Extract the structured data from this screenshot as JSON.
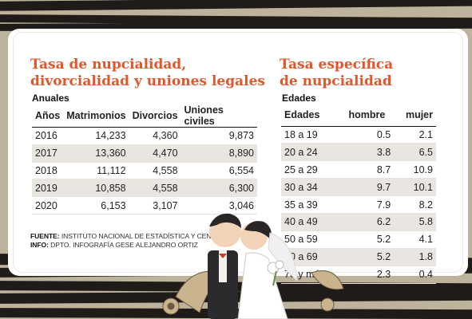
{
  "left_section": {
    "title_line1": "Tasa de nupcialidad,",
    "title_line2": "divorcialidad y  uniones legales",
    "subtitle": "Anuales",
    "columns": [
      "Años",
      "Matrimonios",
      "Divorcios",
      "Uniones civiles"
    ],
    "rows": [
      [
        "2016",
        "14,233",
        "4,360",
        "9,873"
      ],
      [
        "2017",
        "13,360",
        "4,470",
        "8,890"
      ],
      [
        "2018",
        "11,112",
        "4,558",
        "6,554"
      ],
      [
        "2019",
        "10,858",
        "4,558",
        "6,300"
      ],
      [
        "2020",
        "6,153",
        "3,107",
        "3,046"
      ]
    ]
  },
  "right_section": {
    "title_line1": "Tasa específica",
    "title_line2": "de nupcialidad",
    "subtitle": "Edades",
    "columns": [
      "Edades",
      "hombre",
      "mujer"
    ],
    "rows": [
      [
        "18 a 19",
        "0.5",
        "2.1"
      ],
      [
        "20 a 24",
        "3.8",
        "6.5"
      ],
      [
        "25 a 29",
        "8.7",
        "10.9"
      ],
      [
        "30 a 34",
        "9.7",
        "10.1"
      ],
      [
        "35 a 39",
        "7.9",
        "8.2"
      ],
      [
        "40 a 49",
        "6.2",
        "5.8"
      ],
      [
        "50 a 59",
        "5.2",
        "4.1"
      ],
      [
        "60 a 69",
        "5.2",
        "1.8"
      ],
      [
        "70 y más",
        "2.3",
        "0.4"
      ]
    ]
  },
  "source": {
    "fuente_label": "FUENTE:",
    "fuente_value": " INSTITUTO NACIONAL DE ESTADÍSTICA Y CENSO",
    "info_label": "INFO:",
    "info_value": " DPTO. INFOGRAFÍA GESE ALEJANDRO ORTIZ"
  },
  "colors": {
    "title": "#e2562b",
    "background": "#bdb39c",
    "stripes": "#1e1b18",
    "row_alt": "#e9e6e1"
  },
  "illustration": "bride-and-groom-kissing"
}
